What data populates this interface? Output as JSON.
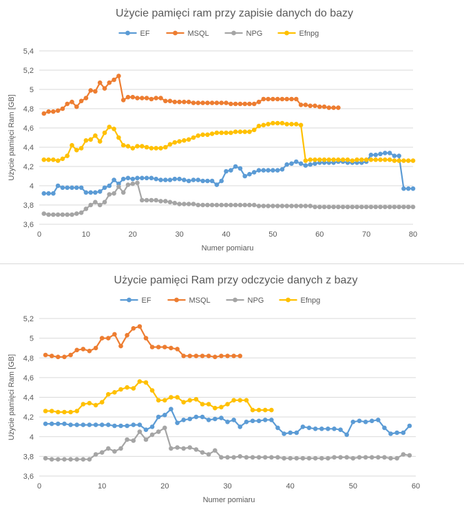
{
  "chart_data": [
    {
      "type": "line",
      "title": "Użycie pamięci ram przy zapisie danych do bazy",
      "xlabel": "Numer pomiaru",
      "ylabel": "Użycie pamięci Ram [GB]",
      "xlim": [
        0,
        80
      ],
      "ylim": [
        3.6,
        5.4
      ],
      "xticks": [
        0,
        10,
        20,
        30,
        40,
        50,
        60,
        70,
        80
      ],
      "xtick_labels": [
        "0",
        "10",
        "20",
        "30",
        "40",
        "50",
        "60",
        "70",
        "80"
      ],
      "yticks": [
        3.6,
        3.8,
        4.0,
        4.2,
        4.4,
        4.6,
        4.8,
        5.0,
        5.2,
        5.4
      ],
      "ytick_labels": [
        "3,6",
        "3,8",
        "4",
        "4,2",
        "4,4",
        "4,6",
        "4,8",
        "5",
        "5,2",
        "5,4"
      ],
      "grid": true,
      "legend_position": "top",
      "series": [
        {
          "name": "EF",
          "color": "#5b9bd5",
          "start_x": 1,
          "values": [
            3.92,
            3.92,
            3.92,
            4.0,
            3.98,
            3.98,
            3.98,
            3.98,
            3.98,
            3.93,
            3.93,
            3.93,
            3.94,
            3.98,
            4.0,
            4.06,
            4.02,
            4.07,
            4.08,
            4.07,
            4.08,
            4.08,
            4.08,
            4.08,
            4.07,
            4.06,
            4.06,
            4.06,
            4.07,
            4.07,
            4.06,
            4.05,
            4.06,
            4.06,
            4.05,
            4.05,
            4.05,
            4.01,
            4.05,
            4.15,
            4.16,
            4.2,
            4.18,
            4.1,
            4.12,
            4.14,
            4.16,
            4.16,
            4.16,
            4.16,
            4.16,
            4.17,
            4.22,
            4.23,
            4.25,
            4.23,
            4.21,
            4.22,
            4.23,
            4.24,
            4.24,
            4.24,
            4.24,
            4.25,
            4.25,
            4.24,
            4.24,
            4.24,
            4.24,
            4.25,
            4.32,
            4.32,
            4.33,
            4.34,
            4.34,
            4.31,
            4.31,
            3.97,
            3.97,
            3.97
          ]
        },
        {
          "name": "MSQL",
          "color": "#ed7d31",
          "start_x": 1,
          "values": [
            4.75,
            4.77,
            4.77,
            4.78,
            4.8,
            4.85,
            4.87,
            4.82,
            4.88,
            4.91,
            4.99,
            4.98,
            5.07,
            5.01,
            5.07,
            5.1,
            5.14,
            4.89,
            4.92,
            4.92,
            4.91,
            4.91,
            4.91,
            4.9,
            4.91,
            4.91,
            4.88,
            4.88,
            4.87,
            4.87,
            4.87,
            4.87,
            4.86,
            4.86,
            4.86,
            4.86,
            4.86,
            4.86,
            4.86,
            4.86,
            4.85,
            4.85,
            4.85,
            4.85,
            4.85,
            4.85,
            4.87,
            4.9,
            4.9,
            4.9,
            4.9,
            4.9,
            4.9,
            4.9,
            4.9,
            4.84,
            4.84,
            4.83,
            4.83,
            4.82,
            4.82,
            4.81,
            4.81,
            4.81
          ]
        },
        {
          "name": "NPG",
          "color": "#a5a5a5",
          "start_x": 1,
          "values": [
            3.71,
            3.7,
            3.7,
            3.7,
            3.7,
            3.7,
            3.7,
            3.71,
            3.72,
            3.76,
            3.8,
            3.83,
            3.8,
            3.83,
            3.91,
            3.92,
            3.99,
            3.93,
            4.01,
            4.02,
            4.03,
            3.85,
            3.85,
            3.85,
            3.85,
            3.84,
            3.84,
            3.83,
            3.82,
            3.81,
            3.81,
            3.81,
            3.81,
            3.8,
            3.8,
            3.8,
            3.8,
            3.8,
            3.8,
            3.8,
            3.8,
            3.8,
            3.8,
            3.8,
            3.8,
            3.8,
            3.79,
            3.79,
            3.79,
            3.79,
            3.79,
            3.79,
            3.79,
            3.79,
            3.79,
            3.79,
            3.79,
            3.79,
            3.78,
            3.78,
            3.78,
            3.78,
            3.78,
            3.78,
            3.78,
            3.78,
            3.78,
            3.78,
            3.78,
            3.78,
            3.78,
            3.78,
            3.78,
            3.78,
            3.78,
            3.78,
            3.78,
            3.78,
            3.78,
            3.78
          ]
        },
        {
          "name": "Efnpg",
          "color": "#ffc000",
          "start_x": 1,
          "values": [
            4.27,
            4.27,
            4.27,
            4.26,
            4.28,
            4.31,
            4.42,
            4.37,
            4.39,
            4.47,
            4.48,
            4.52,
            4.46,
            4.55,
            4.61,
            4.59,
            4.5,
            4.42,
            4.41,
            4.39,
            4.41,
            4.41,
            4.4,
            4.39,
            4.39,
            4.39,
            4.4,
            4.43,
            4.45,
            4.46,
            4.47,
            4.48,
            4.5,
            4.52,
            4.53,
            4.53,
            4.54,
            4.55,
            4.55,
            4.55,
            4.55,
            4.56,
            4.56,
            4.56,
            4.56,
            4.58,
            4.62,
            4.63,
            4.64,
            4.65,
            4.65,
            4.65,
            4.64,
            4.64,
            4.64,
            4.63,
            4.26,
            4.27,
            4.27,
            4.27,
            4.27,
            4.27,
            4.27,
            4.27,
            4.27,
            4.27,
            4.26,
            4.27,
            4.27,
            4.27,
            4.27,
            4.27,
            4.27,
            4.27,
            4.27,
            4.26,
            4.26,
            4.26,
            4.26,
            4.26
          ]
        }
      ]
    },
    {
      "type": "line",
      "title": "Użycie pamięci Ram przy odczycie danych z bazy",
      "xlabel": "Numer pomiaru",
      "ylabel": "Użycie pamięci Ram [GB]",
      "xlim": [
        0,
        60
      ],
      "ylim": [
        3.6,
        5.2
      ],
      "xticks": [
        0,
        10,
        20,
        30,
        40,
        50,
        60
      ],
      "xtick_labels": [
        "0",
        "10",
        "20",
        "30",
        "40",
        "50",
        "60"
      ],
      "yticks": [
        3.6,
        3.8,
        4.0,
        4.2,
        4.4,
        4.6,
        4.8,
        5.0,
        5.2
      ],
      "ytick_labels": [
        "3,6",
        "3,8",
        "4",
        "4,2",
        "4,4",
        "4,6",
        "4,8",
        "5",
        "5,2"
      ],
      "grid": true,
      "legend_position": "top",
      "series": [
        {
          "name": "EF",
          "color": "#5b9bd5",
          "start_x": 1,
          "values": [
            4.13,
            4.13,
            4.13,
            4.13,
            4.12,
            4.12,
            4.12,
            4.12,
            4.12,
            4.12,
            4.12,
            4.11,
            4.11,
            4.11,
            4.12,
            4.12,
            4.07,
            4.1,
            4.2,
            4.22,
            4.28,
            4.14,
            4.17,
            4.18,
            4.2,
            4.2,
            4.17,
            4.18,
            4.19,
            4.15,
            4.17,
            4.1,
            4.15,
            4.16,
            4.16,
            4.17,
            4.17,
            4.09,
            4.03,
            4.04,
            4.04,
            4.1,
            4.09,
            4.08,
            4.08,
            4.08,
            4.08,
            4.07,
            4.02,
            4.15,
            4.16,
            4.15,
            4.16,
            4.17,
            4.09,
            4.03,
            4.04,
            4.04,
            4.11
          ]
        },
        {
          "name": "MSQL",
          "color": "#ed7d31",
          "start_x": 1,
          "values": [
            4.83,
            4.82,
            4.81,
            4.81,
            4.83,
            4.88,
            4.89,
            4.87,
            4.9,
            5.0,
            5.0,
            5.04,
            4.92,
            5.03,
            5.1,
            5.12,
            5.0,
            4.91,
            4.91,
            4.91,
            4.9,
            4.89,
            4.82,
            4.82,
            4.82,
            4.82,
            4.82,
            4.81,
            4.82,
            4.82,
            4.82,
            4.82
          ]
        },
        {
          "name": "NPG",
          "color": "#a5a5a5",
          "start_x": 1,
          "values": [
            3.78,
            3.77,
            3.77,
            3.77,
            3.77,
            3.77,
            3.77,
            3.77,
            3.82,
            3.84,
            3.88,
            3.85,
            3.88,
            3.97,
            3.96,
            4.05,
            3.97,
            4.02,
            4.05,
            4.09,
            3.88,
            3.89,
            3.88,
            3.89,
            3.87,
            3.84,
            3.82,
            3.86,
            3.79,
            3.79,
            3.79,
            3.8,
            3.79,
            3.79,
            3.79,
            3.79,
            3.79,
            3.79,
            3.78,
            3.78,
            3.78,
            3.78,
            3.78,
            3.78,
            3.78,
            3.78,
            3.79,
            3.79,
            3.79,
            3.78,
            3.79,
            3.79,
            3.79,
            3.79,
            3.79,
            3.78,
            3.78,
            3.82,
            3.81
          ]
        },
        {
          "name": "Efnpg",
          "color": "#ffc000",
          "start_x": 1,
          "values": [
            4.26,
            4.26,
            4.25,
            4.25,
            4.25,
            4.26,
            4.33,
            4.34,
            4.32,
            4.35,
            4.43,
            4.45,
            4.48,
            4.5,
            4.49,
            4.56,
            4.55,
            4.47,
            4.37,
            4.37,
            4.4,
            4.4,
            4.35,
            4.37,
            4.38,
            4.33,
            4.33,
            4.29,
            4.3,
            4.33,
            4.37,
            4.37,
            4.37,
            4.27,
            4.27,
            4.27,
            4.27
          ]
        }
      ]
    }
  ]
}
